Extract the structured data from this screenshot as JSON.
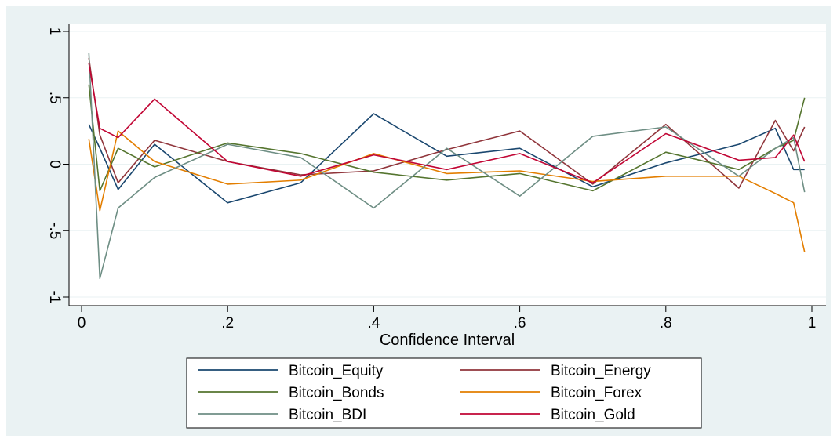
{
  "chart_data": {
    "type": "line",
    "title": "",
    "xlabel": "Confidence Interval",
    "ylabel": "",
    "xlim": [
      0,
      1
    ],
    "ylim": [
      -1,
      1
    ],
    "grid": true,
    "legend_placement": "bottom-center",
    "x_ticks": [
      {
        "value": 0,
        "label": "0"
      },
      {
        "value": 0.2,
        "label": ".2"
      },
      {
        "value": 0.4,
        "label": ".4"
      },
      {
        "value": 0.6,
        "label": ".6"
      },
      {
        "value": 0.8,
        "label": ".8"
      },
      {
        "value": 1,
        "label": "1"
      }
    ],
    "y_ticks": [
      {
        "value": -1,
        "label": "-1"
      },
      {
        "value": -0.5,
        "label": "-.5"
      },
      {
        "value": 0,
        "label": "0"
      },
      {
        "value": 0.5,
        "label": ".5"
      },
      {
        "value": 1,
        "label": "1"
      }
    ],
    "x": [
      0.01,
      0.025,
      0.05,
      0.1,
      0.2,
      0.3,
      0.4,
      0.5,
      0.6,
      0.7,
      0.8,
      0.9,
      0.95,
      0.975,
      0.99
    ],
    "series": [
      {
        "name": "Bitcoin_Equity",
        "color": "#1a476f",
        "values": [
          0.3,
          0.12,
          -0.19,
          0.15,
          -0.29,
          -0.14,
          0.38,
          0.06,
          0.12,
          -0.17,
          0.01,
          0.15,
          0.27,
          -0.04,
          -0.04
        ]
      },
      {
        "name": "Bitcoin_Energy",
        "color": "#90353b",
        "values": [
          0.8,
          0.22,
          -0.14,
          0.18,
          0.02,
          -0.08,
          -0.05,
          0.11,
          0.25,
          -0.15,
          0.3,
          -0.18,
          0.33,
          0.1,
          0.28
        ]
      },
      {
        "name": "Bitcoin_Bonds",
        "color": "#55752f",
        "values": [
          0.6,
          -0.2,
          0.12,
          -0.02,
          0.16,
          0.08,
          -0.06,
          -0.12,
          -0.07,
          -0.2,
          0.09,
          -0.04,
          0.12,
          0.18,
          0.5
        ]
      },
      {
        "name": "Bitcoin_Forex",
        "color": "#e37e00",
        "values": [
          0.19,
          -0.35,
          0.25,
          0.02,
          -0.15,
          -0.12,
          0.08,
          -0.07,
          -0.05,
          -0.13,
          -0.09,
          -0.09,
          -0.22,
          -0.29,
          -0.66
        ]
      },
      {
        "name": "Bitcoin_BDI",
        "color": "#6e8e84",
        "values": [
          0.84,
          -0.86,
          -0.33,
          -0.1,
          0.15,
          0.05,
          -0.33,
          0.12,
          -0.24,
          0.21,
          0.28,
          -0.09,
          0.12,
          0.2,
          -0.21
        ]
      },
      {
        "name": "Bitcoin_Gold",
        "color": "#c10534",
        "values": [
          0.76,
          0.27,
          0.2,
          0.49,
          0.02,
          -0.09,
          0.07,
          -0.04,
          0.08,
          -0.14,
          0.23,
          0.03,
          0.05,
          0.22,
          0.02
        ]
      }
    ]
  }
}
